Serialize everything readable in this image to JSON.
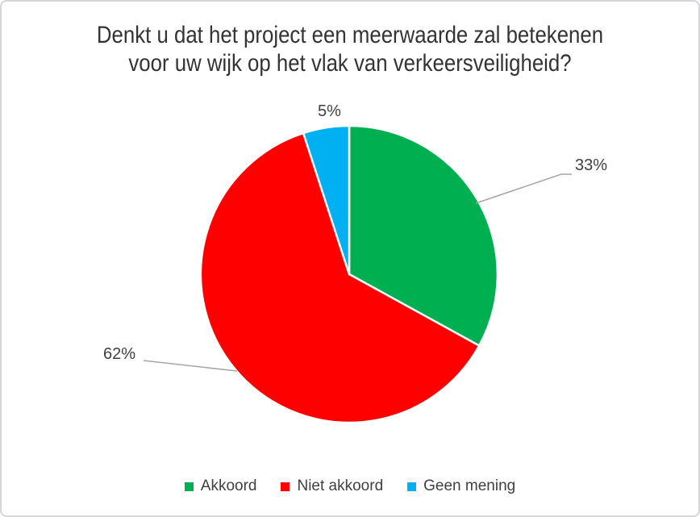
{
  "chart_data": {
    "type": "pie",
    "title": "Denkt u dat het project een meerwaarde zal betekenen voor uw wijk op het vlak van verkeersveiligheid?",
    "title_lines": [
      "Denkt u dat het project een meerwaarde zal betekenen",
      "voor uw wijk op het vlak van verkeersveiligheid?"
    ],
    "categories": [
      "Akkoord",
      "Niet akkoord",
      "Geen mening"
    ],
    "values": [
      33,
      62,
      5
    ],
    "labels": [
      "33%",
      "62%",
      "5%"
    ],
    "colors": [
      "#00B050",
      "#FF0000",
      "#00B0F0"
    ],
    "slice_border_color": "#FFFFFF",
    "leader_line_color": "#A6A6A6",
    "label_color": "#404040",
    "title_color": "#333333",
    "start_angle_deg": 0,
    "direction": "clockwise",
    "legend_position": "bottom"
  }
}
